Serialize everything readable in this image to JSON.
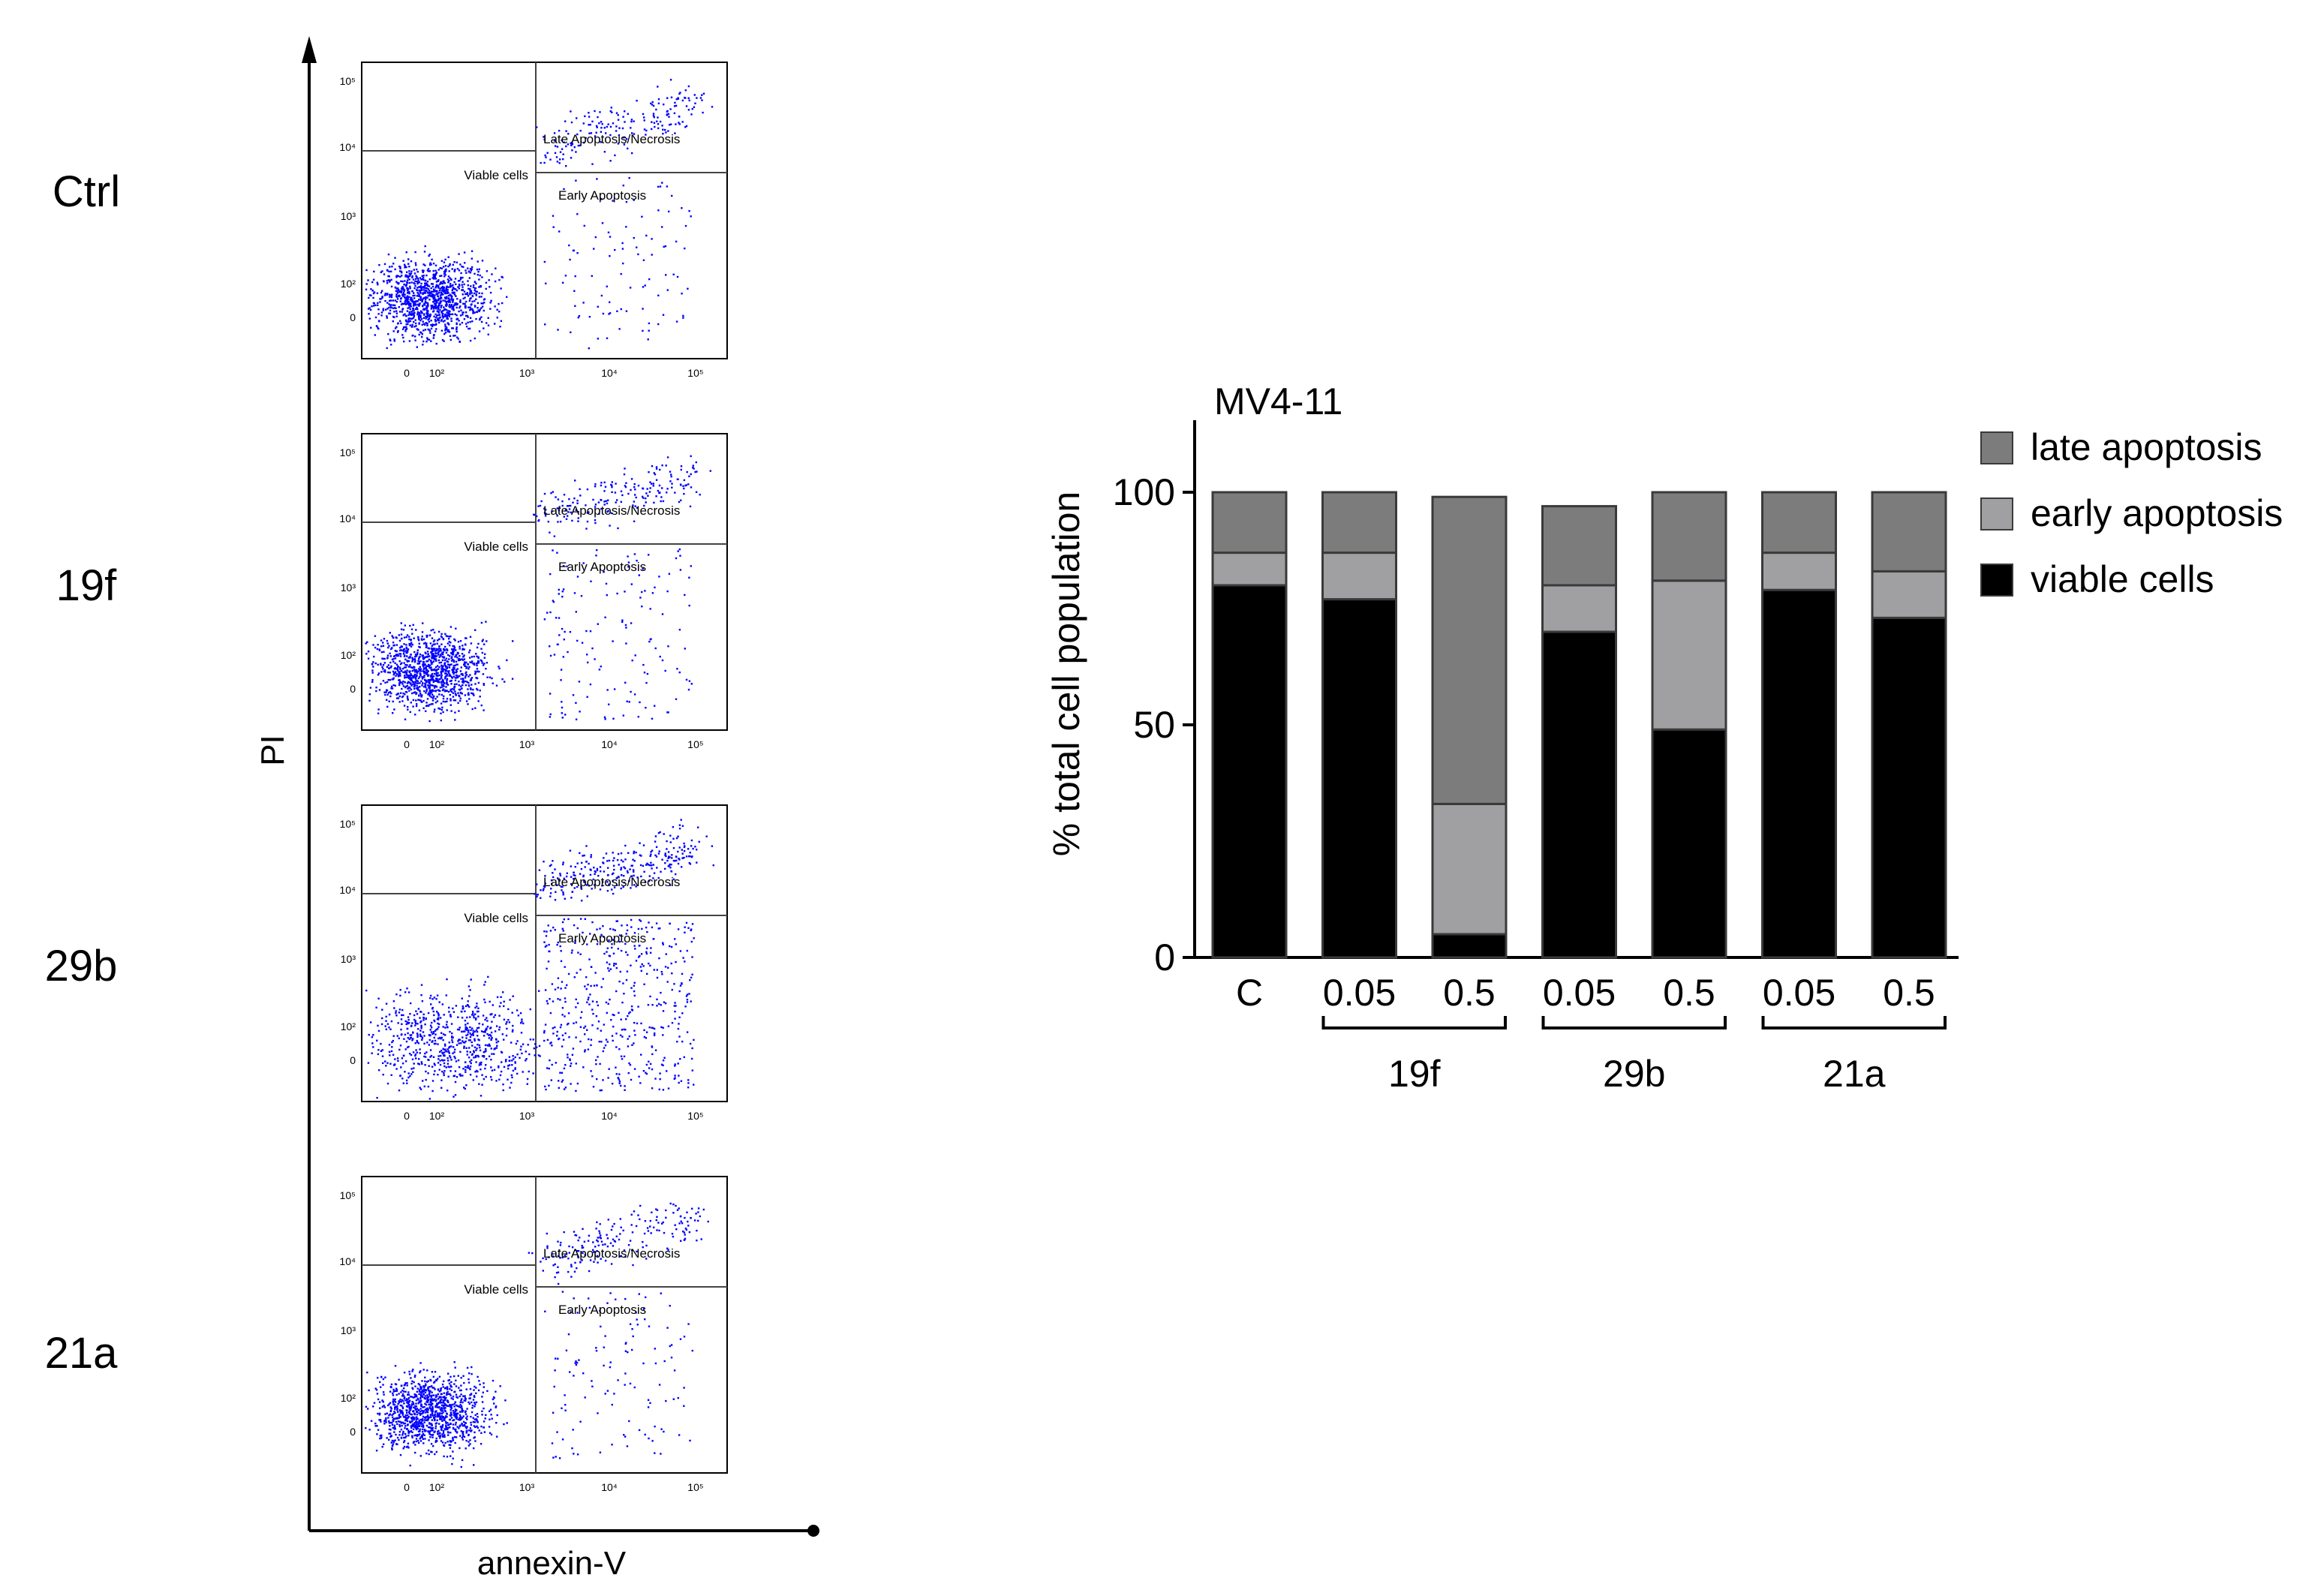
{
  "flow": {
    "y_axis_label": "PI",
    "x_axis_label": "annexin-V",
    "quadrant_labels": {
      "viable": "Viable cells",
      "early": "Early Apoptosis",
      "late": "Late Apoptosis/Necrosis"
    },
    "tick_labels": {
      "x": [
        "0",
        "10²",
        "10³",
        "10⁴",
        "10⁵"
      ],
      "y": [
        "10⁵",
        "10⁴",
        "10³",
        "10²",
        "0"
      ]
    },
    "panels": [
      {
        "label": "Ctrl",
        "viable_pct": 80,
        "early_pct": 7,
        "late_pct": 13
      },
      {
        "label": "19f",
        "viable_pct": 77,
        "early_pct": 10,
        "late_pct": 13
      },
      {
        "label": "29b",
        "viable_pct": 50,
        "early_pct": 31,
        "late_pct": 19
      },
      {
        "label": "21a",
        "viable_pct": 79,
        "early_pct": 8,
        "late_pct": 13
      }
    ],
    "dot_color": "#0000ff"
  },
  "chart_data": {
    "type": "bar",
    "stacked": true,
    "title": "MV4-11",
    "ylabel": "% total cell  population",
    "xlabel": "",
    "ylim": [
      0,
      115
    ],
    "yticks": [
      0,
      50,
      100
    ],
    "categories": [
      "C",
      "0.05",
      "0.5",
      "0.05",
      "0.5",
      "0.05",
      "0.5"
    ],
    "groups": [
      {
        "label": "19f",
        "indices": [
          1,
          2
        ]
      },
      {
        "label": "29b",
        "indices": [
          3,
          4
        ]
      },
      {
        "label": "21a",
        "indices": [
          5,
          6
        ]
      }
    ],
    "series": [
      {
        "name": "viable cells",
        "color": "#000000",
        "values": [
          80,
          77,
          5,
          70,
          49,
          79,
          73
        ]
      },
      {
        "name": "early apoptosis",
        "color": "#a0a0a3",
        "values": [
          7,
          10,
          28,
          10,
          32,
          8,
          10
        ]
      },
      {
        "name": "late apoptosis",
        "color": "#7c7c7c",
        "values": [
          13,
          13,
          66,
          17,
          19,
          13,
          17
        ]
      }
    ],
    "legend_order": [
      "late apoptosis",
      "early apoptosis",
      "viable cells"
    ],
    "legend_position": "right"
  }
}
